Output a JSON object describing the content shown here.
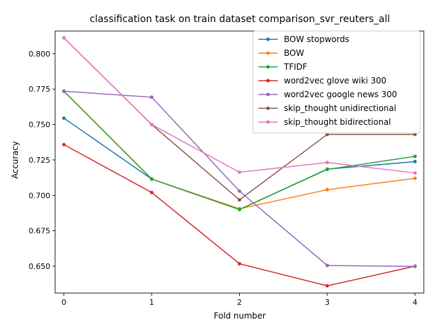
{
  "chart_data": {
    "type": "line",
    "title": "classification task on train dataset comparison_svr_reuters_all",
    "xlabel": "Fold number",
    "ylabel": "Accuracy",
    "x": [
      0,
      1,
      2,
      3,
      4
    ],
    "xlim": [
      -0.1,
      4.1
    ],
    "ylim": [
      0.631,
      0.816
    ],
    "xticks": [
      "0",
      "1",
      "2",
      "3",
      "4"
    ],
    "yticks": [
      "0.650",
      "0.675",
      "0.700",
      "0.725",
      "0.750",
      "0.775",
      "0.800"
    ],
    "grid": false,
    "legend_position": "top-right",
    "series": [
      {
        "name": "BOW stopwords",
        "color": "#1f77b4",
        "values": [
          0.7545,
          0.7115,
          0.69,
          0.7185,
          0.7238
        ]
      },
      {
        "name": "BOW",
        "color": "#ff7f0e",
        "values": [
          0.7735,
          0.7115,
          0.6905,
          0.704,
          0.712
        ]
      },
      {
        "name": "TFIDF",
        "color": "#2ca02c",
        "values": [
          0.7735,
          0.7115,
          0.69,
          0.7183,
          0.7275
        ]
      },
      {
        "name": "word2vec glove wiki 300",
        "color": "#d62728",
        "values": [
          0.7358,
          0.702,
          0.6517,
          0.6361,
          0.65
        ]
      },
      {
        "name": "word2vec google news 300",
        "color": "#9467bd",
        "values": [
          0.7735,
          0.7693,
          0.703,
          0.6505,
          0.6498
        ]
      },
      {
        "name": "skip_thought unidirectional",
        "color": "#8c564b",
        "values": [
          0.8112,
          0.75,
          0.6968,
          0.743,
          0.743
        ]
      },
      {
        "name": "skip_thought bidirectional",
        "color": "#e377c2",
        "values": [
          0.8112,
          0.75,
          0.7163,
          0.7232,
          0.7158
        ]
      }
    ]
  }
}
